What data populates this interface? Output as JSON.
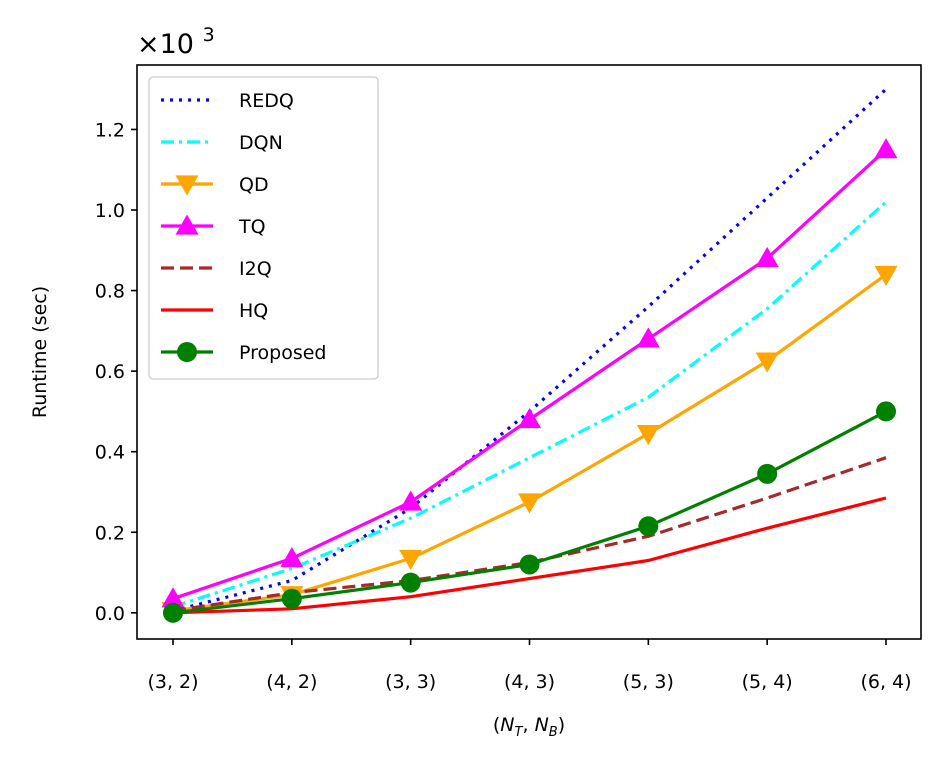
{
  "chart_data": {
    "type": "line",
    "title": "",
    "xlabel": "(N_T, N_B)",
    "xlabel_parts": {
      "open": "(",
      "n1": "N",
      "sub1": "T",
      "comma": ", ",
      "n2": "N",
      "sub2": "B",
      "close": ")"
    },
    "ylabel": "Runtime (sec)",
    "y_multiplier": {
      "base": "×10",
      "exponent": "3"
    },
    "categories": [
      "(3, 2)",
      "(4, 2)",
      "(3, 3)",
      "(4, 3)",
      "(5, 3)",
      "(5, 4)",
      "(6, 4)"
    ],
    "ylim": [
      -0.065,
      1.36
    ],
    "yticks": [
      0.0,
      0.2,
      0.4,
      0.6,
      0.8,
      1.0,
      1.2
    ],
    "ytick_labels": [
      "0.0",
      "0.2",
      "0.4",
      "0.6",
      "0.8",
      "1.0",
      "1.2"
    ],
    "legend_position": "top-left",
    "grid": false,
    "series": [
      {
        "name": "REDQ",
        "color": "#0000ff",
        "style": "dotted",
        "marker": "none",
        "values": [
          0.005,
          0.08,
          0.26,
          0.5,
          0.76,
          1.03,
          1.3
        ]
      },
      {
        "name": "DQN",
        "color": "#00ffff",
        "style": "dashdot",
        "marker": "none",
        "values": [
          0.015,
          0.11,
          0.235,
          0.385,
          0.535,
          0.755,
          1.02
        ]
      },
      {
        "name": "QD",
        "color": "#ffa500",
        "style": "solid",
        "marker": "triangle-down",
        "values": [
          0.005,
          0.045,
          0.135,
          0.275,
          0.445,
          0.625,
          0.84
        ]
      },
      {
        "name": "TQ",
        "color": "#ff00ff",
        "style": "solid",
        "marker": "triangle-up",
        "values": [
          0.035,
          0.135,
          0.275,
          0.48,
          0.68,
          0.88,
          1.15
        ]
      },
      {
        "name": "I2Q",
        "color": "#a52a2a",
        "style": "dashed",
        "marker": "none",
        "values": [
          0.005,
          0.05,
          0.08,
          0.125,
          0.19,
          0.285,
          0.385
        ]
      },
      {
        "name": "HQ",
        "color": "#ff0000",
        "style": "solid",
        "marker": "none",
        "values": [
          0.0,
          0.01,
          0.04,
          0.085,
          0.13,
          0.21,
          0.285
        ]
      },
      {
        "name": "Proposed",
        "color": "#008000",
        "style": "solid",
        "marker": "circle",
        "values": [
          0.0,
          0.035,
          0.075,
          0.12,
          0.215,
          0.345,
          0.5
        ]
      }
    ]
  }
}
